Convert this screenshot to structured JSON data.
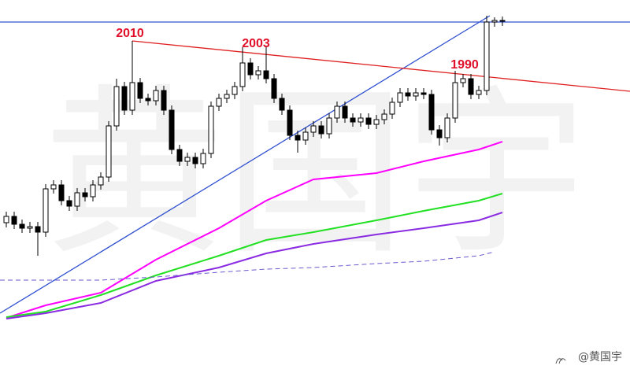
{
  "chart_data": {
    "type": "candlestick",
    "xlim": [
      -0.8,
      79.2
    ],
    "ylim": [
      0,
      488
    ],
    "up_color": "#ffffff",
    "down_color": "#000000",
    "ohlc": [
      [
        205,
        219,
        199,
        213
      ],
      [
        213,
        219,
        197,
        203
      ],
      [
        203,
        209,
        192,
        198
      ],
      [
        198,
        206,
        192,
        200
      ],
      [
        200,
        206,
        163,
        193
      ],
      [
        193,
        254,
        187,
        248
      ],
      [
        248,
        259,
        242,
        253
      ],
      [
        253,
        259,
        227,
        233
      ],
      [
        233,
        239,
        220,
        226
      ],
      [
        226,
        249,
        220,
        243
      ],
      [
        243,
        249,
        232,
        238
      ],
      [
        238,
        259,
        232,
        253
      ],
      [
        253,
        269,
        247,
        263
      ],
      [
        263,
        334,
        257,
        328
      ],
      [
        328,
        388,
        322,
        378
      ],
      [
        378,
        384,
        342,
        348
      ],
      [
        348,
        436,
        342,
        383
      ],
      [
        383,
        389,
        357,
        363
      ],
      [
        363,
        369,
        354,
        360
      ],
      [
        360,
        379,
        354,
        373
      ],
      [
        373,
        379,
        342,
        348
      ],
      [
        348,
        354,
        292,
        298
      ],
      [
        298,
        304,
        277,
        283
      ],
      [
        283,
        294,
        277,
        288
      ],
      [
        288,
        294,
        274,
        280
      ],
      [
        280,
        299,
        274,
        293
      ],
      [
        293,
        359,
        287,
        353
      ],
      [
        353,
        369,
        347,
        363
      ],
      [
        363,
        374,
        357,
        368
      ],
      [
        368,
        384,
        362,
        378
      ],
      [
        378,
        428,
        372,
        408
      ],
      [
        408,
        414,
        387,
        393
      ],
      [
        393,
        404,
        387,
        398
      ],
      [
        398,
        430,
        382,
        388
      ],
      [
        388,
        394,
        357,
        363
      ],
      [
        363,
        369,
        342,
        348
      ],
      [
        348,
        354,
        310,
        316
      ],
      [
        316,
        322,
        294,
        310
      ],
      [
        310,
        326,
        304,
        320
      ],
      [
        320,
        334,
        314,
        328
      ],
      [
        328,
        334,
        312,
        318
      ],
      [
        318,
        344,
        312,
        338
      ],
      [
        338,
        359,
        332,
        353
      ],
      [
        353,
        359,
        332,
        338
      ],
      [
        338,
        344,
        327,
        333
      ],
      [
        333,
        344,
        327,
        338
      ],
      [
        338,
        344,
        324,
        330
      ],
      [
        330,
        342,
        324,
        336
      ],
      [
        336,
        349,
        330,
        343
      ],
      [
        343,
        364,
        337,
        358
      ],
      [
        358,
        376,
        352,
        370
      ],
      [
        370,
        376,
        360,
        366
      ],
      [
        366,
        376,
        360,
        370
      ],
      [
        370,
        376,
        362,
        368
      ],
      [
        368,
        374,
        317,
        323
      ],
      [
        323,
        329,
        303,
        313
      ],
      [
        313,
        344,
        307,
        338
      ],
      [
        338,
        398,
        332,
        383
      ],
      [
        383,
        394,
        377,
        388
      ],
      [
        388,
        394,
        362,
        368
      ],
      [
        368,
        379,
        362,
        373
      ],
      [
        373,
        468,
        367,
        460
      ],
      [
        460,
        466,
        454,
        462
      ],
      [
        462,
        467,
        455,
        461
      ]
    ],
    "series": [
      {
        "color": "#ff00ff",
        "x": [
          0,
          5,
          12,
          19,
          27,
          33,
          39,
          47,
          53,
          60,
          63
        ],
        "values": [
          84,
          100,
          116,
          158,
          198,
          233,
          260,
          268,
          283,
          298,
          308
        ]
      },
      {
        "color": "#22e022",
        "x": [
          0,
          5,
          12,
          19,
          27,
          33,
          39,
          47,
          53,
          60,
          63
        ],
        "values": [
          85,
          92,
          113,
          138,
          163,
          183,
          193,
          208,
          220,
          233,
          242
        ]
      },
      {
        "color": "#8a2be2",
        "x": [
          0,
          5,
          12,
          19,
          27,
          33,
          39,
          47,
          53,
          60,
          63
        ],
        "values": [
          83,
          90,
          103,
          131,
          148,
          166,
          178,
          190,
          198,
          208,
          218
        ]
      },
      {
        "color": "#6a5acd",
        "dashed": true,
        "x": [
          -0.8,
          12,
          19,
          27,
          33,
          39,
          47,
          53,
          60,
          62
        ],
        "values": [
          132,
          132,
          136,
          142,
          146,
          148,
          153,
          156,
          163,
          168
        ]
      }
    ],
    "trendlines": [
      {
        "color": "#3050d0",
        "x": [
          -0.8,
          61.4
        ],
        "values": [
          90,
          468
        ]
      },
      {
        "color": "#e02020",
        "x": [
          16,
          79.2
        ],
        "values": [
          436,
          372
        ]
      },
      {
        "color": "#3050d0",
        "x": [
          -0.8,
          79.2
        ],
        "values": [
          460,
          460
        ]
      }
    ],
    "annotations": [
      {
        "text": "2010",
        "x": 15.7,
        "y": 441
      },
      {
        "text": "2003",
        "x": 31.7,
        "y": 428
      },
      {
        "text": "1990",
        "x": 58.2,
        "y": 401
      }
    ],
    "annotation_color": "#e0102a"
  },
  "watermark": "黄国宇",
  "credit": "@黄国宇"
}
